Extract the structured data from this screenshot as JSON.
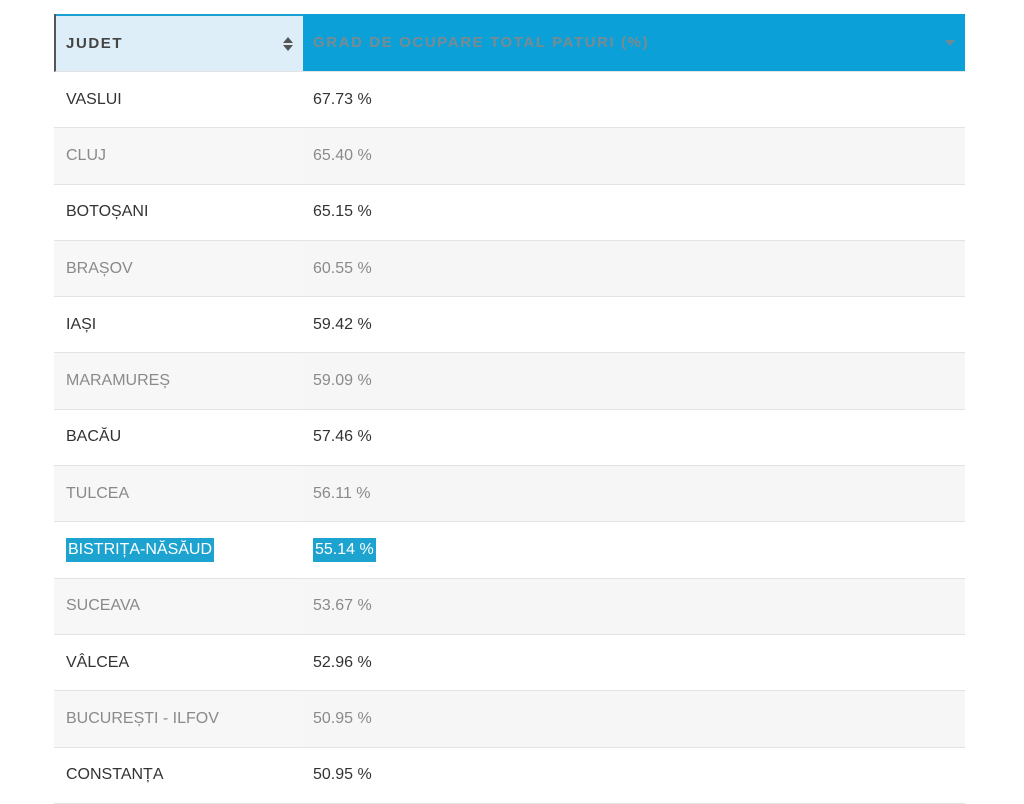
{
  "table": {
    "headers": {
      "judet": "JUDET",
      "grad": "GRAD DE OCUPARE TOTAL PATURI (%)"
    },
    "rows": [
      {
        "judet": "VASLUI",
        "grad": "67.73 %"
      },
      {
        "judet": "CLUJ",
        "grad": "65.40 %"
      },
      {
        "judet": "BOTOȘANI",
        "grad": "65.15 %"
      },
      {
        "judet": "BRAȘOV",
        "grad": "60.55 %"
      },
      {
        "judet": "IAȘI",
        "grad": "59.42 %"
      },
      {
        "judet": "MARAMUREȘ",
        "grad": "59.09 %"
      },
      {
        "judet": "BACĂU",
        "grad": "57.46 %"
      },
      {
        "judet": "TULCEA",
        "grad": "56.11 %"
      },
      {
        "judet": "BISTRIȚA-NĂSĂUD",
        "grad": "55.14 %",
        "highlighted": true
      },
      {
        "judet": "SUCEAVA",
        "grad": "53.67 %"
      },
      {
        "judet": "VÂLCEA",
        "grad": "52.96 %"
      },
      {
        "judet": "BUCUREȘTI - ILFOV",
        "grad": "50.95 %"
      },
      {
        "judet": "CONSTANȚA",
        "grad": "50.95 %"
      }
    ]
  },
  "colors": {
    "accent": "#0ba1d8",
    "header_light": "#ddeef8",
    "highlight": "#1da3cf"
  },
  "icons": {
    "judet_sort": "sort-updown-icon",
    "grad_sort": "sort-down-icon"
  }
}
